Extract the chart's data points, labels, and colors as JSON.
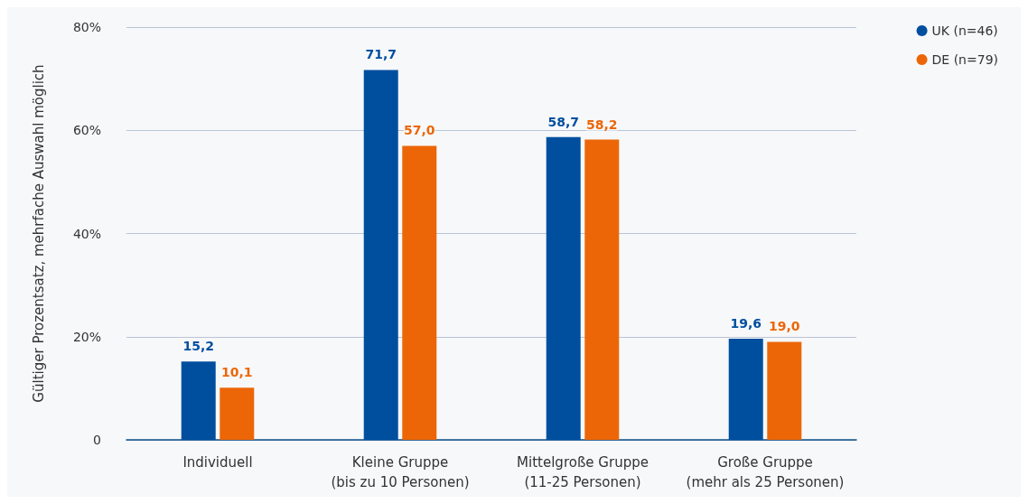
{
  "chart_data": {
    "type": "bar",
    "ylabel": "Gültiger Prozentsatz, mehrfache Auswahl möglich",
    "categories": [
      "Individuell",
      "Kleine Gruppe\n(bis zu 10 Personen)",
      "Mittelgroße Gruppe\n(11-25 Personen)",
      "Große Gruppe\n(mehr als 25 Personen)"
    ],
    "series": [
      {
        "name": "UK (n=46)",
        "color": "#004f9f",
        "values": [
          15.2,
          71.7,
          58.7,
          19.6
        ],
        "value_labels": [
          "15,2",
          "71,7",
          "58,7",
          "19,6"
        ]
      },
      {
        "name": "DE (n=79)",
        "color": "#ec6608",
        "values": [
          10.1,
          57.0,
          58.2,
          19.0
        ],
        "value_labels": [
          "10,1",
          "57,0",
          "58,2",
          "19,0"
        ]
      }
    ],
    "ylim": [
      0,
      80
    ],
    "yticks": [
      0,
      {
        "value": 20,
        "label": "20%"
      },
      {
        "value": 40,
        "label": "40%"
      },
      {
        "value": 60,
        "label": "60%"
      },
      {
        "value": 80,
        "label": "80%"
      }
    ],
    "grid": "y",
    "legend": "top right"
  }
}
